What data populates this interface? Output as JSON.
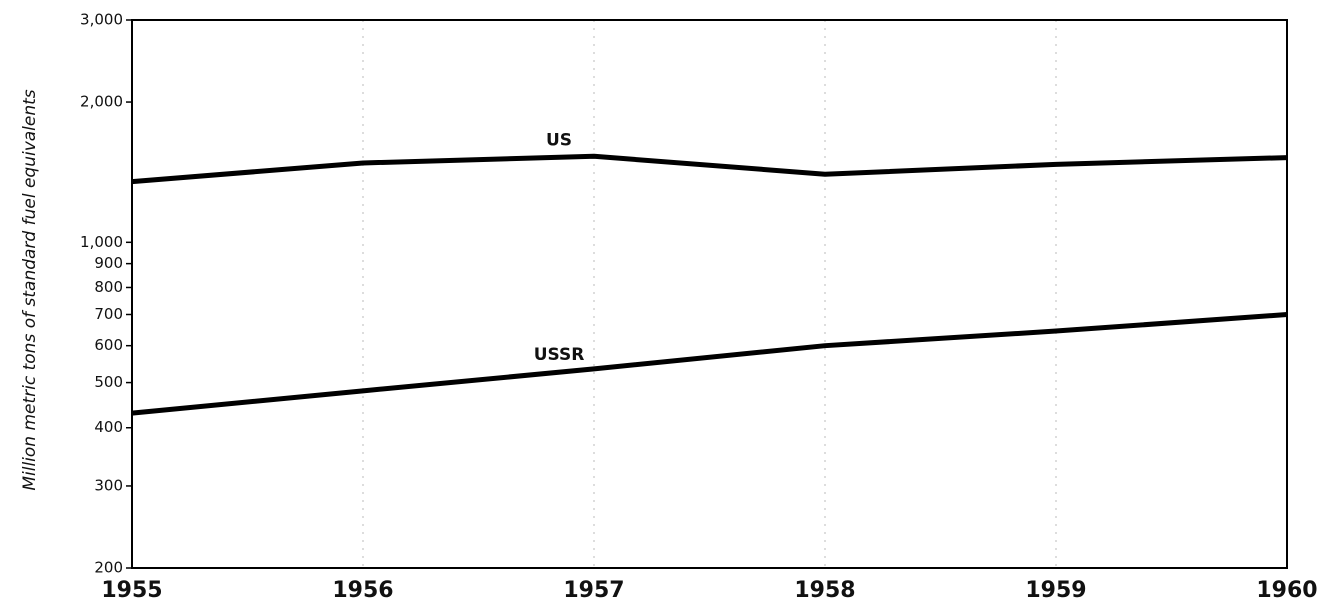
{
  "chart_data": {
    "type": "line",
    "y_label": "Million metric tons of standard fuel equivalents",
    "x": [
      1955,
      1956,
      1957,
      1958,
      1959,
      1960
    ],
    "xlim": [
      1955,
      1960
    ],
    "xticks": [
      1955,
      1956,
      1957,
      1958,
      1959,
      1960
    ],
    "ylim": [
      200,
      3000
    ],
    "log_y": true,
    "yticks": [
      200,
      300,
      400,
      500,
      600,
      700,
      800,
      900,
      {
        "value": 1000,
        "label": "1,000"
      },
      {
        "value": 2000,
        "label": "2,000"
      },
      {
        "value": 3000,
        "label": "3,000"
      }
    ],
    "grid": true,
    "series": [
      {
        "name": "US",
        "color": "#000000",
        "values": [
          1350,
          1480,
          1530,
          1400,
          1470,
          1520
        ]
      },
      {
        "name": "USSR",
        "color": "#000000",
        "values": [
          430,
          480,
          535,
          600,
          645,
          700
        ]
      }
    ]
  }
}
